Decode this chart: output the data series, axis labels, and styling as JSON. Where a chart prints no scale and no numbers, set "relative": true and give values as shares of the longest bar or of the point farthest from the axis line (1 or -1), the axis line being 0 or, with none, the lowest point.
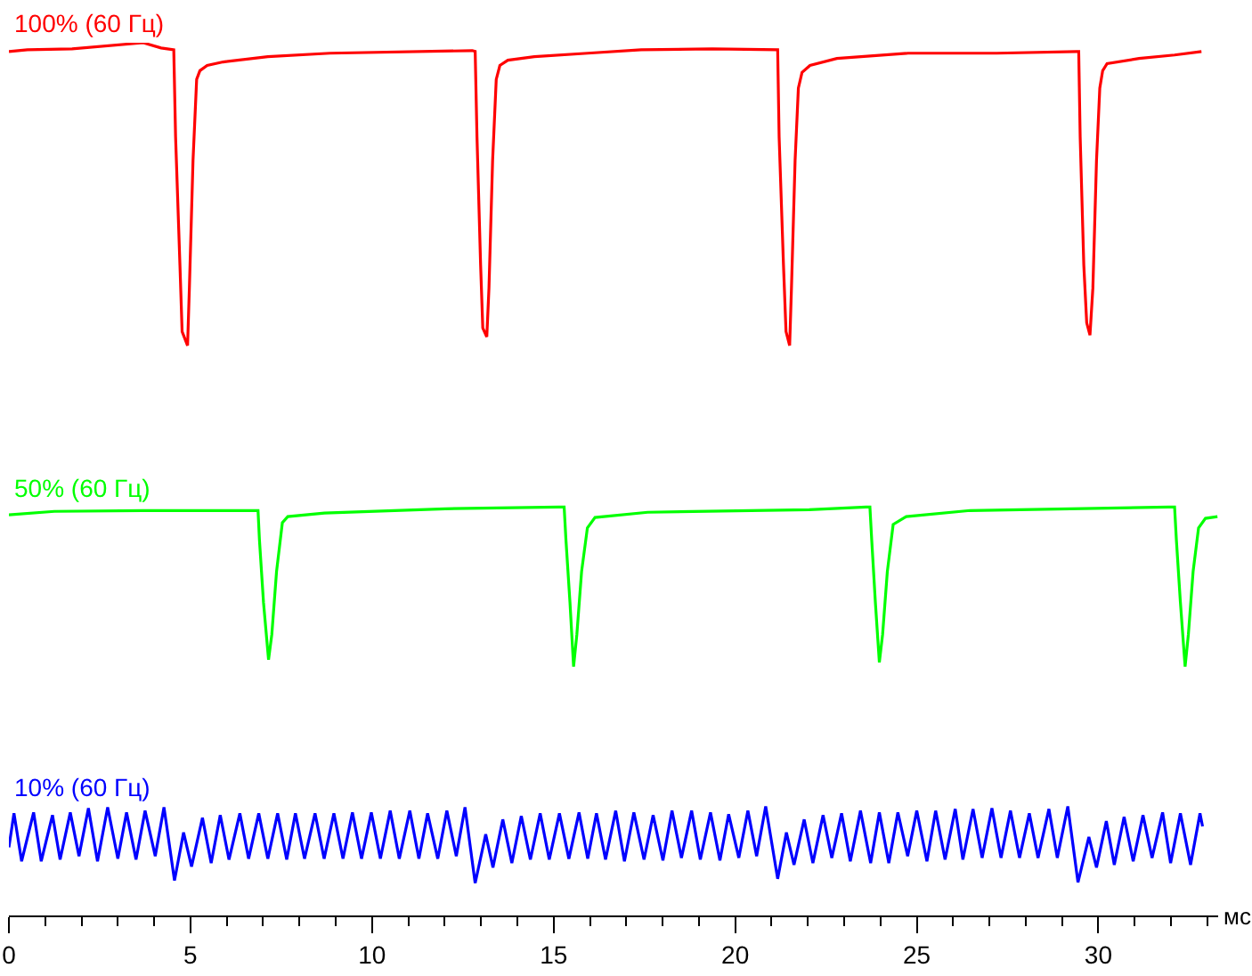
{
  "chart_data": {
    "type": "line",
    "relative": true,
    "xlabel": "мс",
    "tick_labels": "x",
    "xlim": [
      0,
      33.3
    ],
    "xticks": [
      0,
      {
        "value": 1,
        "label": null
      },
      {
        "value": 2,
        "label": null
      },
      {
        "value": 3,
        "label": null
      },
      {
        "value": 4,
        "label": null
      },
      5,
      {
        "value": 6,
        "label": null
      },
      {
        "value": 7,
        "label": null
      },
      {
        "value": 8,
        "label": null
      },
      {
        "value": 9,
        "label": null
      },
      10,
      {
        "value": 11,
        "label": null
      },
      {
        "value": 12,
        "label": null
      },
      {
        "value": 13,
        "label": null
      },
      {
        "value": 14,
        "label": null
      },
      15,
      {
        "value": 16,
        "label": null
      },
      {
        "value": 17,
        "label": null
      },
      {
        "value": 18,
        "label": null
      },
      {
        "value": 19,
        "label": null
      },
      20,
      {
        "value": 21,
        "label": null
      },
      {
        "value": 22,
        "label": null
      },
      {
        "value": 23,
        "label": null
      },
      {
        "value": 24,
        "label": null
      },
      25,
      {
        "value": 26,
        "label": null
      },
      {
        "value": 27,
        "label": null
      },
      {
        "value": 28,
        "label": null
      },
      {
        "value": 29,
        "label": null
      },
      30,
      {
        "value": 31,
        "label": null
      },
      {
        "value": 32,
        "label": null
      },
      {
        "value": 33,
        "label": null
      }
    ],
    "series": [
      {
        "name": "100% (60 Гц)",
        "color": "#ff0000",
        "x": [
          0.0,
          0.51,
          1.74,
          3.7,
          4.19,
          4.54,
          4.59,
          4.71,
          4.77,
          4.92,
          4.97,
          5.07,
          5.17,
          5.26,
          5.46,
          5.9,
          7.13,
          8.84,
          12.76,
          12.84,
          12.89,
          12.99,
          13.05,
          13.16,
          13.22,
          13.32,
          13.42,
          13.52,
          13.74,
          14.47,
          15.94,
          17.41,
          19.37,
          21.17,
          21.21,
          21.33,
          21.4,
          21.5,
          21.55,
          21.65,
          21.74,
          21.84,
          22.06,
          22.8,
          24.76,
          27.2,
          29.41,
          29.46,
          29.5,
          29.6,
          29.68,
          29.77,
          29.85,
          29.95,
          30.04,
          30.12,
          30.24,
          31.12,
          32.1,
          32.84
        ],
        "values": [
          0.99,
          0.992,
          0.993,
          1.0,
          0.994,
          0.992,
          0.892,
          0.745,
          0.669,
          0.653,
          0.719,
          0.865,
          0.958,
          0.968,
          0.974,
          0.978,
          0.984,
          0.988,
          0.991,
          0.99,
          0.892,
          0.745,
          0.673,
          0.663,
          0.719,
          0.865,
          0.958,
          0.974,
          0.98,
          0.984,
          0.988,
          0.992,
          0.993,
          0.992,
          0.892,
          0.745,
          0.669,
          0.653,
          0.719,
          0.865,
          0.948,
          0.966,
          0.974,
          0.982,
          0.988,
          0.988,
          0.99,
          0.99,
          0.892,
          0.745,
          0.679,
          0.665,
          0.719,
          0.865,
          0.948,
          0.968,
          0.976,
          0.982,
          0.986,
          0.99
        ]
      },
      {
        "name": "50% (60 Гц)",
        "color": "#00ff00",
        "x": [
          0.0,
          1.25,
          3.7,
          6.86,
          6.9,
          7.01,
          7.15,
          7.24,
          7.37,
          7.53,
          7.68,
          8.69,
          12.02,
          15.14,
          15.29,
          15.34,
          15.45,
          15.55,
          15.64,
          15.77,
          15.93,
          16.14,
          17.59,
          22.04,
          23.6,
          23.71,
          23.76,
          23.86,
          23.97,
          24.06,
          24.19,
          24.35,
          24.71,
          26.47,
          31.94,
          32.1,
          32.15,
          32.26,
          32.39,
          32.48,
          32.61,
          32.76,
          32.95,
          33.28
        ],
        "values": [
          0.459,
          0.463,
          0.464,
          0.464,
          0.43,
          0.359,
          0.293,
          0.322,
          0.394,
          0.45,
          0.457,
          0.461,
          0.466,
          0.468,
          0.468,
          0.43,
          0.359,
          0.285,
          0.322,
          0.394,
          0.444,
          0.456,
          0.462,
          0.465,
          0.468,
          0.468,
          0.43,
          0.359,
          0.29,
          0.322,
          0.394,
          0.448,
          0.457,
          0.464,
          0.468,
          0.468,
          0.43,
          0.359,
          0.285,
          0.322,
          0.394,
          0.444,
          0.455,
          0.457
        ]
      },
      {
        "name": "10% (60 Гц)",
        "color": "#0000ff",
        "x": [
          0.0,
          0.14,
          0.35,
          0.68,
          0.89,
          1.2,
          1.41,
          1.69,
          1.93,
          2.19,
          2.44,
          2.72,
          3.0,
          3.24,
          3.5,
          3.75,
          4.03,
          4.27,
          4.56,
          4.81,
          5.03,
          5.33,
          5.57,
          5.82,
          6.06,
          6.36,
          6.6,
          6.88,
          7.13,
          7.4,
          7.65,
          7.89,
          8.14,
          8.43,
          8.68,
          8.95,
          9.2,
          9.46,
          9.71,
          9.98,
          10.23,
          10.5,
          10.75,
          11.04,
          11.29,
          11.53,
          11.81,
          12.06,
          12.32,
          12.56,
          12.84,
          13.13,
          13.33,
          13.6,
          13.85,
          14.11,
          14.36,
          14.63,
          14.88,
          15.16,
          15.42,
          15.7,
          15.94,
          16.18,
          16.43,
          16.71,
          16.95,
          17.21,
          17.49,
          17.74,
          18.01,
          18.26,
          18.52,
          18.8,
          19.04,
          19.32,
          19.58,
          19.82,
          20.1,
          20.35,
          20.59,
          20.84,
          21.17,
          21.41,
          21.62,
          21.9,
          22.14,
          22.42,
          22.66,
          22.93,
          23.17,
          23.45,
          23.73,
          23.97,
          24.23,
          24.48,
          24.75,
          25.0,
          25.28,
          25.52,
          25.78,
          26.06,
          26.27,
          26.55,
          26.8,
          27.07,
          27.32,
          27.58,
          27.83,
          28.1,
          28.34,
          28.64,
          28.87,
          29.16,
          29.44,
          29.74,
          29.95,
          30.22,
          30.44,
          30.71,
          30.96,
          31.23,
          31.48,
          31.77,
          31.99,
          32.26,
          32.54,
          32.8,
          32.87
        ],
        "values": [
          0.078,
          0.117,
          0.062,
          0.118,
          0.062,
          0.115,
          0.064,
          0.118,
          0.068,
          0.123,
          0.062,
          0.124,
          0.065,
          0.118,
          0.064,
          0.12,
          0.068,
          0.124,
          0.04,
          0.095,
          0.056,
          0.112,
          0.06,
          0.115,
          0.064,
          0.117,
          0.065,
          0.117,
          0.065,
          0.117,
          0.064,
          0.117,
          0.065,
          0.117,
          0.065,
          0.117,
          0.065,
          0.118,
          0.065,
          0.118,
          0.065,
          0.12,
          0.065,
          0.12,
          0.065,
          0.117,
          0.065,
          0.12,
          0.068,
          0.124,
          0.037,
          0.093,
          0.055,
          0.11,
          0.06,
          0.114,
          0.064,
          0.117,
          0.064,
          0.117,
          0.065,
          0.118,
          0.065,
          0.117,
          0.064,
          0.12,
          0.062,
          0.118,
          0.064,
          0.115,
          0.063,
          0.12,
          0.066,
          0.12,
          0.064,
          0.118,
          0.063,
          0.116,
          0.066,
          0.12,
          0.068,
          0.125,
          0.042,
          0.095,
          0.058,
          0.11,
          0.06,
          0.115,
          0.066,
          0.117,
          0.062,
          0.12,
          0.06,
          0.118,
          0.06,
          0.118,
          0.068,
          0.12,
          0.062,
          0.12,
          0.064,
          0.122,
          0.064,
          0.122,
          0.066,
          0.123,
          0.066,
          0.12,
          0.066,
          0.117,
          0.066,
          0.122,
          0.066,
          0.125,
          0.038,
          0.09,
          0.055,
          0.108,
          0.058,
          0.113,
          0.062,
          0.115,
          0.066,
          0.118,
          0.06,
          0.117,
          0.058,
          0.117,
          0.102
        ]
      }
    ]
  }
}
